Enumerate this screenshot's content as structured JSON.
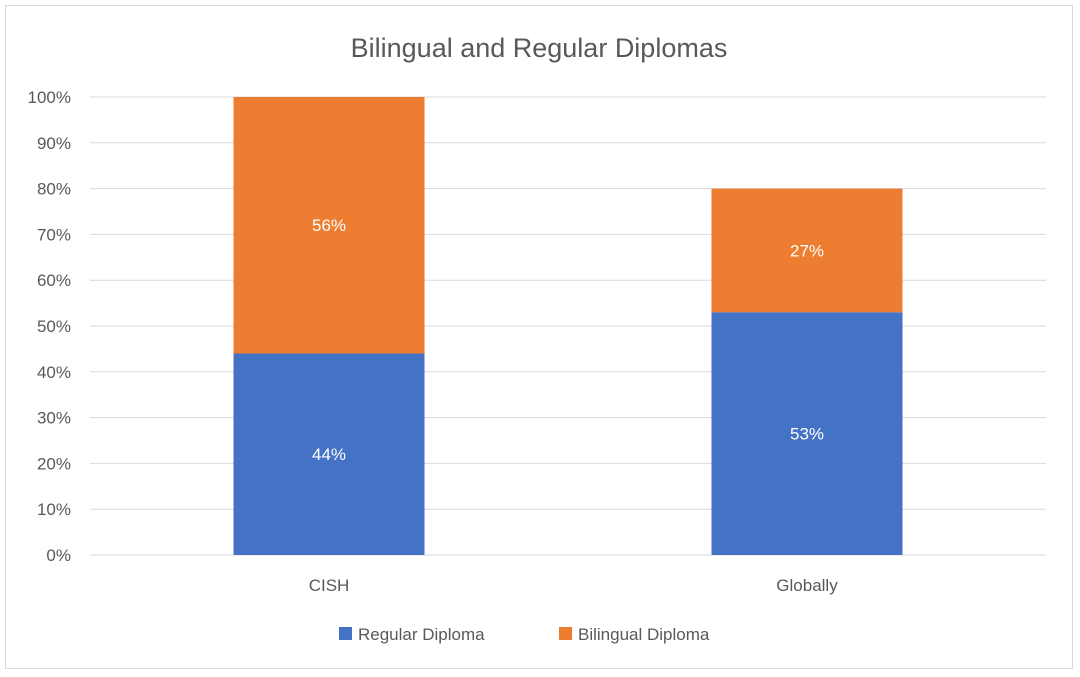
{
  "chart_data": {
    "type": "bar",
    "stacked": true,
    "title": "Bilingual and Regular Diplomas",
    "categories": [
      "CISH",
      "Globally"
    ],
    "series": [
      {
        "name": "Regular Diploma",
        "values": [
          44,
          53
        ],
        "data_labels": [
          "44%",
          "53%"
        ],
        "color": "#4472c4"
      },
      {
        "name": "Bilingual Diploma",
        "values": [
          56,
          27
        ],
        "data_labels": [
          "56%",
          "27%"
        ],
        "color": "#ed7d31"
      }
    ],
    "yticks": [
      "0%",
      "10%",
      "20%",
      "30%",
      "40%",
      "50%",
      "60%",
      "70%",
      "80%",
      "90%",
      "100%"
    ],
    "ylim": [
      0,
      100
    ],
    "grid": true,
    "legend": "bottom",
    "gridColor": "#d9d9d9"
  }
}
